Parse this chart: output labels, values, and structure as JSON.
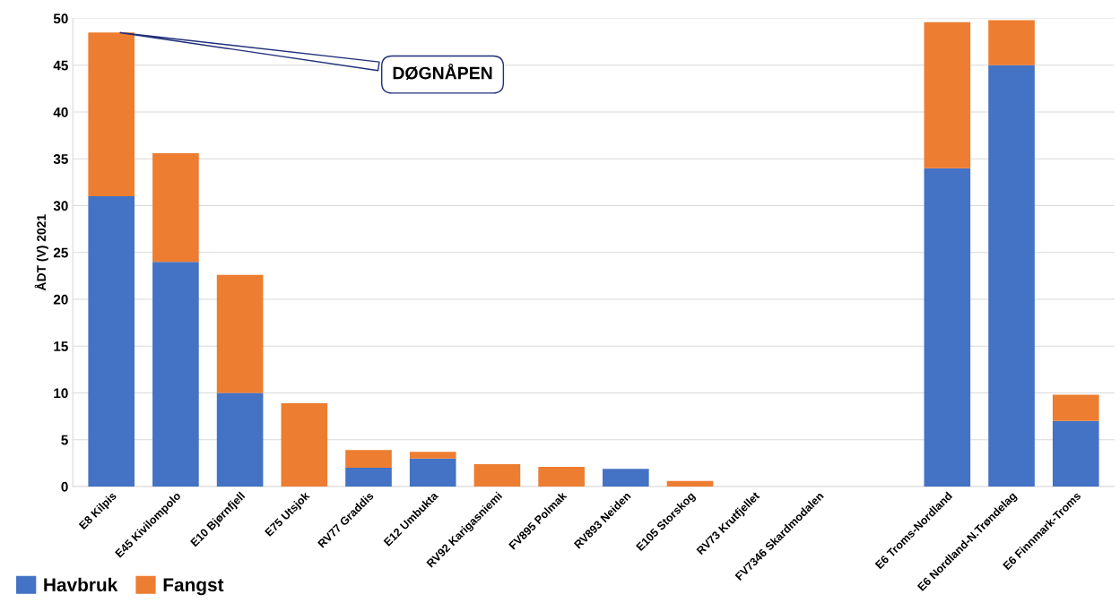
{
  "chart_data": {
    "type": "bar",
    "stacked": true,
    "ylabel": "ÅDT (V) 2021",
    "categories": [
      "E8 Kilpis",
      "E45 Kivilompolo",
      "E10 Bjørnfjell",
      "E75 Utsjok",
      "RV77 Graddis",
      "E12 Umbukta",
      "RV92 Karigasniemi",
      "FV895 Polmak",
      "RV893 Neiden",
      "E105 Storskog",
      "RV73 Krutfjellet",
      "FV7346 Skardmodalen",
      null,
      "E6 Troms-Nordland",
      "E6 Nordland-N.Trøndelag",
      "E6 Finnmark-Troms"
    ],
    "series": [
      {
        "name": "Havbruk",
        "color": "#4472c4",
        "values": [
          31,
          24,
          10,
          0,
          2,
          3,
          0,
          0,
          1.9,
          0,
          0,
          0,
          null,
          34,
          45,
          7
        ]
      },
      {
        "name": "Fangst",
        "color": "#ed7d31",
        "values": [
          17.5,
          11.6,
          12.6,
          8.9,
          1.9,
          0.7,
          2.4,
          2.1,
          0,
          0.6,
          0,
          0,
          null,
          15.6,
          4.8,
          2.8
        ]
      }
    ],
    "ylim": [
      0,
      50
    ],
    "yticks": [
      0,
      5,
      10,
      15,
      20,
      25,
      30,
      35,
      40,
      45,
      50
    ],
    "grid": "y",
    "legend": "bottom left",
    "annotations": [
      {
        "text": "DØGNÅPEN",
        "x": "E8 Kilpis",
        "y": 48.5
      }
    ]
  }
}
